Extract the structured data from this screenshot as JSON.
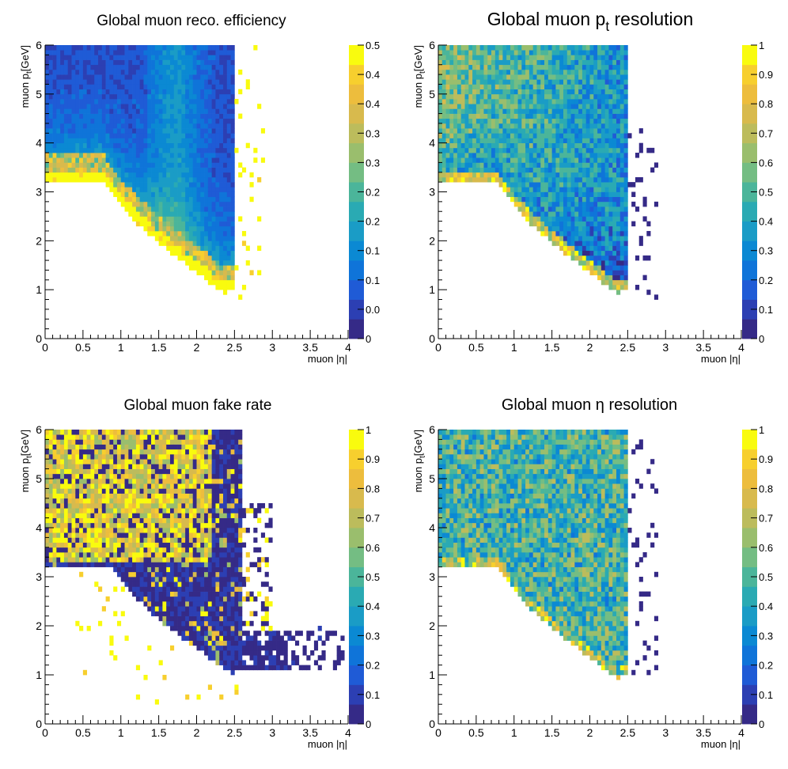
{
  "chart_data": [
    {
      "type": "heatmap",
      "title": "Global muon reco. efficiency",
      "xlabel": "muon |η|",
      "ylabel": "muon p_t[GeV]",
      "xlim": [
        0,
        4
      ],
      "ylim": [
        0,
        6
      ],
      "xticks": [
        "0",
        "0.5",
        "1",
        "1.5",
        "2",
        "2.5",
        "3",
        "3.5",
        "4"
      ],
      "yticks": [
        "0",
        "1",
        "2",
        "3",
        "4",
        "5",
        "6"
      ],
      "zlim": [
        0,
        0.5
      ],
      "zticks": [
        "0",
        "0.0",
        "0.1",
        "0.1",
        "0.2",
        "0.2",
        "0.3",
        "0.3",
        "0.4",
        "0.4",
        "0.5"
      ],
      "nx": 80,
      "ny": 60,
      "region": {
        "eta_max": 2.5,
        "pt_edge_flat": 3.2,
        "pt_edge_min": 0.9,
        "knee_eta": 0.8,
        "floor_eta": 2.4
      },
      "pattern": "efficiency",
      "seed": 11
    },
    {
      "type": "heatmap",
      "title": "Global muon p",
      "title_sub": "t",
      "title_suffix": " resolution",
      "xlabel": "muon |η|",
      "ylabel": "muon p_t[GeV]",
      "xlim": [
        0,
        4
      ],
      "ylim": [
        0,
        6
      ],
      "xticks": [
        "0",
        "0.5",
        "1",
        "1.5",
        "2",
        "2.5",
        "3",
        "3.5",
        "4"
      ],
      "yticks": [
        "0",
        "1",
        "2",
        "3",
        "4",
        "5",
        "6"
      ],
      "zlim": [
        0,
        1
      ],
      "zticks": [
        "0",
        "0.1",
        "0.2",
        "0.3",
        "0.4",
        "0.5",
        "0.6",
        "0.7",
        "0.8",
        "0.9",
        "1"
      ],
      "nx": 80,
      "ny": 60,
      "region": {
        "eta_max": 2.5,
        "pt_edge_flat": 3.2,
        "pt_edge_min": 0.9,
        "knee_eta": 0.8,
        "floor_eta": 2.4
      },
      "pattern": "pt_resolution",
      "seed": 23
    },
    {
      "type": "heatmap",
      "title": "Global muon fake rate",
      "xlabel": "muon |η|",
      "ylabel": "muon p_t[GeV]",
      "xlim": [
        0,
        4
      ],
      "ylim": [
        0,
        6
      ],
      "xticks": [
        "0",
        "0.5",
        "1",
        "1.5",
        "2",
        "2.5",
        "3",
        "3.5",
        "4"
      ],
      "yticks": [
        "0",
        "1",
        "2",
        "3",
        "4",
        "5",
        "6"
      ],
      "zlim": [
        0,
        1
      ],
      "zticks": [
        "0",
        "0.1",
        "0.2",
        "0.3",
        "0.4",
        "0.5",
        "0.6",
        "0.7",
        "0.8",
        "0.9",
        "1"
      ],
      "nx": 80,
      "ny": 60,
      "region": {
        "eta_max": 2.6,
        "pt_edge_flat": 3.2,
        "pt_edge_min": 1.0,
        "knee_eta": 0.9,
        "floor_eta": 2.5
      },
      "pattern": "fake_rate",
      "seed": 37
    },
    {
      "type": "heatmap",
      "title": "Global muon  η resolution",
      "xlabel": "muon |η|",
      "ylabel": "muon p_t[GeV]",
      "xlim": [
        0,
        4
      ],
      "ylim": [
        0,
        6
      ],
      "xticks": [
        "0",
        "0.5",
        "1",
        "1.5",
        "2",
        "2.5",
        "3",
        "3.5",
        "4"
      ],
      "yticks": [
        "0",
        "1",
        "2",
        "3",
        "4",
        "5",
        "6"
      ],
      "zlim": [
        0,
        1
      ],
      "zticks": [
        "0",
        "0.1",
        "0.2",
        "0.3",
        "0.4",
        "0.5",
        "0.6",
        "0.7",
        "0.8",
        "0.9",
        "1"
      ],
      "nx": 80,
      "ny": 60,
      "region": {
        "eta_max": 2.5,
        "pt_edge_flat": 3.2,
        "pt_edge_min": 0.9,
        "knee_eta": 0.8,
        "floor_eta": 2.4
      },
      "pattern": "eta_resolution",
      "seed": 53
    }
  ],
  "palette": [
    "#352a87",
    "#2c3fb3",
    "#1f5bd6",
    "#0f74d9",
    "#0b89d3",
    "#1a9cc6",
    "#2aaab3",
    "#4bb59a",
    "#74bd83",
    "#9abe6d",
    "#bcbc5c",
    "#d8ba4d",
    "#edbd3d",
    "#f7cf2e",
    "#f9fb0e"
  ]
}
